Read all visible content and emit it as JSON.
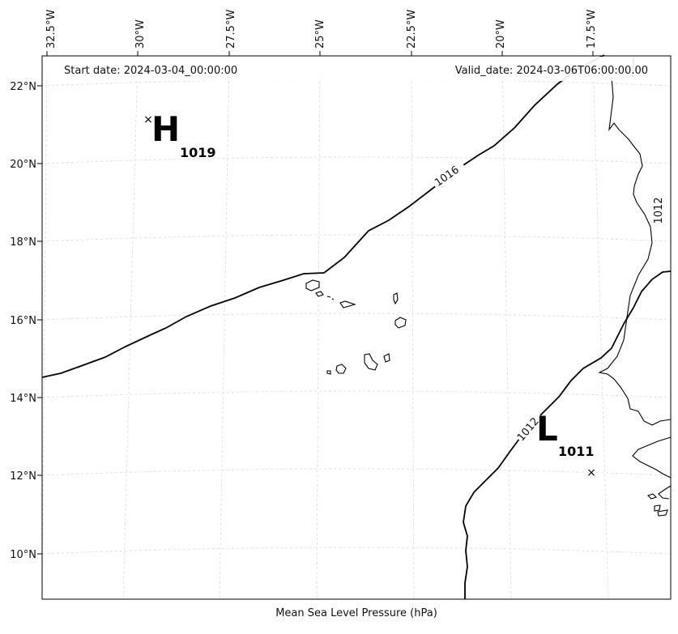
{
  "header": {
    "start_date": "Start date: 2024-03-04_00:00:00",
    "valid_date": "Valid_date: 2024-03-06T06:00:00.00"
  },
  "axes": {
    "lon_ticks": [
      "32.5°W",
      "30°W",
      "27.5°W",
      "25°W",
      "22.5°W",
      "20°W",
      "17.5°W"
    ],
    "lat_ticks": [
      "22°N",
      "20°N",
      "18°N",
      "16°N",
      "14°N",
      "12°N",
      "10°N"
    ],
    "gridlines": true
  },
  "isobars": [
    {
      "value": 1016,
      "label": "1016"
    },
    {
      "value": 1012,
      "label": "1012"
    },
    {
      "value": 1012,
      "label": "1012"
    }
  ],
  "pressure_centers": [
    {
      "type": "high",
      "letter": "H",
      "value": "1019"
    },
    {
      "type": "low",
      "letter": "L",
      "value": "1011"
    }
  ],
  "footer": {
    "label": "Mean Sea Level Pressure (hPa)"
  }
}
